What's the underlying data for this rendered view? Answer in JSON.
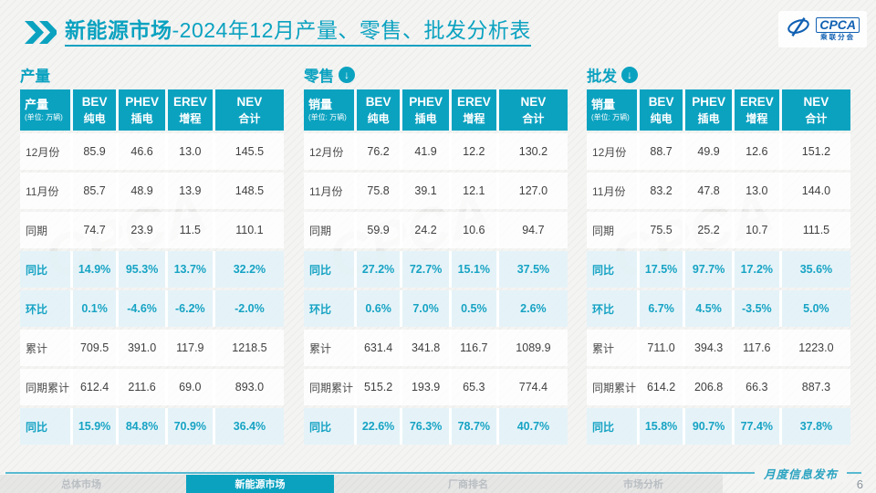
{
  "page": {
    "title_primary": "新能源市场",
    "title_secondary": "-2024年12月产量、零售、批发分析表",
    "footer_label": "月度信息发布",
    "page_number": "6",
    "watermark": "CPCA"
  },
  "logo": {
    "name": "CPCA",
    "subname": "乘联分会"
  },
  "colors": {
    "accent": "#0BA2C0",
    "percent_text": "#17A3C4",
    "highlight_row_bg": "#E3F2F8",
    "logo_blue": "#1060B2"
  },
  "nav": {
    "items": [
      {
        "label": "总体市场",
        "active": false
      },
      {
        "label": "新能源市场",
        "active": true
      },
      {
        "label": "厂商排名",
        "active": false
      },
      {
        "label": "市场分析",
        "active": false
      }
    ]
  },
  "tables": [
    {
      "id": "production",
      "section_title": "产量",
      "arrow_icon": false,
      "unit_label": "产量",
      "unit_sub": "(单位: 万辆)",
      "columns": [
        {
          "code": "BEV",
          "name": "纯电"
        },
        {
          "code": "PHEV",
          "name": "插电"
        },
        {
          "code": "EREV",
          "name": "增程"
        },
        {
          "code": "NEV",
          "name": "合计"
        }
      ],
      "rows": [
        {
          "label": "12月份",
          "highlight": false,
          "values": [
            "85.9",
            "46.6",
            "13.0",
            "145.5"
          ]
        },
        {
          "label": "11月份",
          "highlight": false,
          "values": [
            "85.7",
            "48.9",
            "13.9",
            "148.5"
          ]
        },
        {
          "label": "同期",
          "highlight": false,
          "values": [
            "74.7",
            "23.9",
            "11.5",
            "110.1"
          ]
        },
        {
          "label": "同比",
          "highlight": true,
          "values": [
            "14.9%",
            "95.3%",
            "13.7%",
            "32.2%"
          ]
        },
        {
          "label": "环比",
          "highlight": true,
          "values": [
            "0.1%",
            "-4.6%",
            "-6.2%",
            "-2.0%"
          ]
        },
        {
          "label": "累计",
          "highlight": false,
          "values": [
            "709.5",
            "391.0",
            "117.9",
            "1218.5"
          ]
        },
        {
          "label": "同期累计",
          "highlight": false,
          "values": [
            "612.4",
            "211.6",
            "69.0",
            "893.0"
          ]
        },
        {
          "label": "同比",
          "highlight": true,
          "values": [
            "15.9%",
            "84.8%",
            "70.9%",
            "36.4%"
          ]
        }
      ]
    },
    {
      "id": "retail",
      "section_title": "零售",
      "arrow_icon": true,
      "unit_label": "销量",
      "unit_sub": "(单位: 万辆)",
      "columns": [
        {
          "code": "BEV",
          "name": "纯电"
        },
        {
          "code": "PHEV",
          "name": "插电"
        },
        {
          "code": "EREV",
          "name": "增程"
        },
        {
          "code": "NEV",
          "name": "合计"
        }
      ],
      "rows": [
        {
          "label": "12月份",
          "highlight": false,
          "values": [
            "76.2",
            "41.9",
            "12.2",
            "130.2"
          ]
        },
        {
          "label": "11月份",
          "highlight": false,
          "values": [
            "75.8",
            "39.1",
            "12.1",
            "127.0"
          ]
        },
        {
          "label": "同期",
          "highlight": false,
          "values": [
            "59.9",
            "24.2",
            "10.6",
            "94.7"
          ]
        },
        {
          "label": "同比",
          "highlight": true,
          "values": [
            "27.2%",
            "72.7%",
            "15.1%",
            "37.5%"
          ]
        },
        {
          "label": "环比",
          "highlight": true,
          "values": [
            "0.6%",
            "7.0%",
            "0.5%",
            "2.6%"
          ]
        },
        {
          "label": "累计",
          "highlight": false,
          "values": [
            "631.4",
            "341.8",
            "116.7",
            "1089.9"
          ]
        },
        {
          "label": "同期累计",
          "highlight": false,
          "values": [
            "515.2",
            "193.9",
            "65.3",
            "774.4"
          ]
        },
        {
          "label": "同比",
          "highlight": true,
          "values": [
            "22.6%",
            "76.3%",
            "78.7%",
            "40.7%"
          ]
        }
      ]
    },
    {
      "id": "wholesale",
      "section_title": "批发",
      "arrow_icon": true,
      "unit_label": "销量",
      "unit_sub": "(单位: 万辆)",
      "columns": [
        {
          "code": "BEV",
          "name": "纯电"
        },
        {
          "code": "PHEV",
          "name": "插电"
        },
        {
          "code": "EREV",
          "name": "增程"
        },
        {
          "code": "NEV",
          "name": "合计"
        }
      ],
      "rows": [
        {
          "label": "12月份",
          "highlight": false,
          "values": [
            "88.7",
            "49.9",
            "12.6",
            "151.2"
          ]
        },
        {
          "label": "11月份",
          "highlight": false,
          "values": [
            "83.2",
            "47.8",
            "13.0",
            "144.0"
          ]
        },
        {
          "label": "同期",
          "highlight": false,
          "values": [
            "75.5",
            "25.2",
            "10.7",
            "111.5"
          ]
        },
        {
          "label": "同比",
          "highlight": true,
          "values": [
            "17.5%",
            "97.7%",
            "17.2%",
            "35.6%"
          ]
        },
        {
          "label": "环比",
          "highlight": true,
          "values": [
            "6.7%",
            "4.5%",
            "-3.5%",
            "5.0%"
          ]
        },
        {
          "label": "累计",
          "highlight": false,
          "values": [
            "711.0",
            "394.3",
            "117.6",
            "1223.0"
          ]
        },
        {
          "label": "同期累计",
          "highlight": false,
          "values": [
            "614.2",
            "206.8",
            "66.3",
            "887.3"
          ]
        },
        {
          "label": "同比",
          "highlight": true,
          "values": [
            "15.8%",
            "90.7%",
            "77.4%",
            "37.8%"
          ]
        }
      ]
    }
  ]
}
